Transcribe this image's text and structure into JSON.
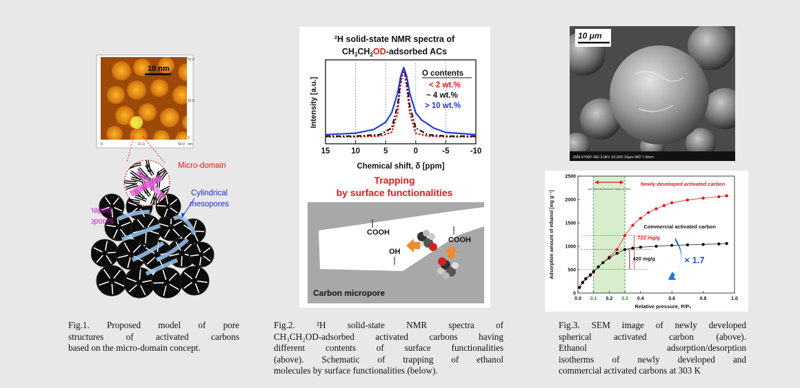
{
  "fig1": {
    "afm_scale": "10 nm",
    "afm_ticks": [
      "0",
      "21.3",
      "50.0",
      "50.0",
      "25.0",
      "0",
      "nm"
    ],
    "label_micro_domain": "Micro-domain",
    "label_slit_1": "Slit-shaped",
    "label_slit_2": "micropores",
    "label_cyl_1": "Cylindrical",
    "label_cyl_2": "mesopores",
    "caption_lines": [
      "Fig.1. Proposed model of pore",
      "structures of activated carbons",
      "based on the micro-domain concept."
    ]
  },
  "fig2": {
    "title_line1": "²H solid-state NMR spectra of",
    "title_line2_a": "CH",
    "title_line2_b": "3",
    "title_line2_c": "CH",
    "title_line2_d": "2",
    "title_line2_e": "OD",
    "title_line2_f": "-adsorbed ACs",
    "ylabel": "Intensity [a.u.]",
    "xlabel": "Chemical shift, δ  [ppm]",
    "legend_title": "O contents",
    "legend_items": [
      "< 2 wt.%",
      "~ 4 wt.%",
      "> 10 wt.%"
    ],
    "trap_line1": "Trapping",
    "trap_line2": "by surface functionalities",
    "cooh_1": "COOH",
    "cooh_2": "COOH",
    "oh": "OH",
    "micropore_label": "Carbon micropore",
    "caption_lines": [
      "Fig.2. ²H solid-state NMR spectra of",
      "CH₃CH₂OD-adsorbed activated carbons having",
      "different contents of surface functionalities",
      "(above). Schematic of trapping of ethanol",
      "molecules by surface functionalities (below)."
    ],
    "chart_data": {
      "type": "line",
      "title": "²H solid-state NMR spectra of CH3CH2OD-adsorbed ACs",
      "xlabel": "Chemical shift, δ  [ppm]",
      "ylabel": "Intensity [a.u.]",
      "xlim": [
        15,
        -10
      ],
      "x_ticks": [
        15,
        10,
        5,
        0,
        -5,
        -10
      ],
      "series": [
        {
          "name": "< 2 wt.%",
          "color": "#e31a1c",
          "x": [
            15,
            10,
            6,
            4,
            3,
            2.5,
            2,
            1.5,
            1,
            0,
            -2,
            -5,
            -10
          ],
          "y": [
            0.02,
            0.02,
            0.03,
            0.08,
            0.35,
            0.75,
            0.95,
            0.7,
            0.35,
            0.07,
            0.03,
            0.02,
            0.02
          ]
        },
        {
          "name": "~ 4 wt.%",
          "color": "#111111",
          "x": [
            15,
            10,
            6,
            4,
            3,
            2.5,
            2,
            1.5,
            1,
            0,
            -2,
            -5,
            -10
          ],
          "y": [
            0.03,
            0.03,
            0.05,
            0.14,
            0.45,
            0.82,
            0.97,
            0.8,
            0.45,
            0.14,
            0.05,
            0.03,
            0.03
          ]
        },
        {
          "name": "> 10 wt.%",
          "color": "#1f3bd6",
          "x": [
            15,
            10,
            7,
            5,
            4,
            3,
            2.5,
            2,
            1.5,
            1,
            0,
            -1,
            -3,
            -5,
            -10
          ],
          "y": [
            0.05,
            0.07,
            0.12,
            0.22,
            0.35,
            0.62,
            0.85,
            0.97,
            0.85,
            0.62,
            0.35,
            0.25,
            0.14,
            0.08,
            0.05
          ]
        }
      ]
    }
  },
  "fig3": {
    "sem_scale": "10 μm",
    "sem_footer": "JSM-6700F    SEI   3.0kV   X2,500   10μm   WD 7.8mm",
    "ylabel": "Adsorption amount of ethanol [mg g⁻¹]",
    "xlabel": "Relative pressure, P/P₀",
    "op_range_label": "Operational pressure range of ANG",
    "new_ac_label": "Newly developed activated carbon",
    "com_ac_label": "Commercial activated carbon",
    "ann_722": "722 mg/g",
    "ann_420": "420 mg/g",
    "ann_ratio": "× 1.7",
    "caption_lines": [
      "Fig.3. SEM image of newly developed",
      "spherical activated carbon (above).",
      "Ethanol adsorption/desorption",
      "isotherms of newly developed and",
      "commercial activated carbons at 303 K"
    ],
    "chart_data": {
      "type": "scatter",
      "xlabel": "Relative pressure, P/P₀",
      "ylabel": "Adsorption amount of ethanol [mg g⁻¹]",
      "xlim": [
        0,
        1.0
      ],
      "ylim": [
        0,
        2500
      ],
      "x_ticks": [
        0.0,
        0.1,
        0.2,
        0.3,
        0.4,
        0.6,
        0.8,
        1.0
      ],
      "y_ticks": [
        0,
        500,
        1000,
        1500,
        2000,
        2500
      ],
      "series": [
        {
          "name": "Newly developed activated carbon",
          "color": "#e31a1c",
          "x": [
            0.01,
            0.03,
            0.05,
            0.08,
            0.1,
            0.13,
            0.16,
            0.2,
            0.25,
            0.3,
            0.35,
            0.4,
            0.45,
            0.5,
            0.55,
            0.6,
            0.7,
            0.8,
            0.9,
            0.95
          ],
          "y": [
            120,
            220,
            300,
            380,
            450,
            560,
            650,
            770,
            930,
            1230,
            1450,
            1600,
            1720,
            1800,
            1870,
            1930,
            1990,
            2030,
            2060,
            2080
          ]
        },
        {
          "name": "Commercial activated carbon",
          "color": "#111111",
          "x": [
            0.01,
            0.03,
            0.05,
            0.08,
            0.1,
            0.13,
            0.16,
            0.2,
            0.25,
            0.3,
            0.35,
            0.4,
            0.5,
            0.6,
            0.7,
            0.8,
            0.9,
            0.95
          ],
          "y": [
            120,
            230,
            310,
            390,
            460,
            560,
            650,
            750,
            850,
            930,
            960,
            980,
            1000,
            1020,
            1030,
            1040,
            1050,
            1060
          ]
        }
      ]
    }
  }
}
